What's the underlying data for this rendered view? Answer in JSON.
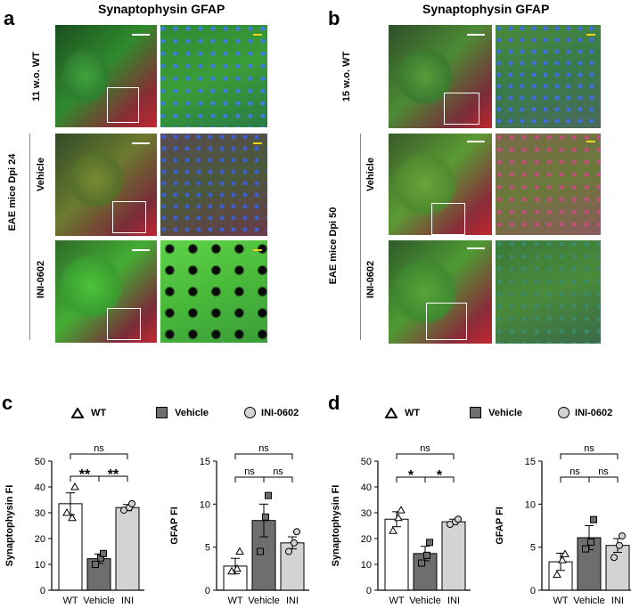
{
  "panel_a": {
    "letter": "a",
    "title": "Synaptophysin GFAP",
    "rows": [
      "11 w.o. WT",
      "Vehicle",
      "INI-0602"
    ],
    "group_label": "EAE mice Dpi 24"
  },
  "panel_b": {
    "letter": "b",
    "title": "Synaptophysin GFAP",
    "rows": [
      "15 w.o. WT",
      "Vehicle",
      "INI-0602"
    ],
    "group_label": "EAE mice Dpi 50"
  },
  "colors": {
    "wt": "#ffffff",
    "vehicle": "#6e6e6e",
    "ini": "#d3d3d3",
    "scale_white": "#ffffff",
    "scale_yellow": "#f2d21b"
  },
  "legend": {
    "wt": "WT",
    "vehicle": "Vehicle",
    "ini": "INI-0602"
  },
  "panel_c": {
    "letter": "c"
  },
  "panel_d": {
    "letter": "d"
  },
  "chart_data": [
    {
      "id": "c-synaptophysin",
      "type": "bar",
      "categories": [
        "WT",
        "Vehicle",
        "INI"
      ],
      "values": [
        33.5,
        12.2,
        32.0
      ],
      "errors": [
        4.2,
        1.8,
        1.2
      ],
      "points": [
        [
          30,
          28,
          40
        ],
        [
          10,
          12.5,
          14.2
        ],
        [
          31,
          32,
          33.5
        ]
      ],
      "ylabel": "Synaptophysin FI",
      "ylim": [
        0,
        50
      ],
      "yticks": [
        0,
        10,
        20,
        30,
        40,
        50
      ],
      "annotations": [
        {
          "from": 0,
          "to": 1,
          "label": "**"
        },
        {
          "from": 1,
          "to": 2,
          "label": "**"
        },
        {
          "from": 0,
          "to": 2,
          "label": "ns"
        }
      ]
    },
    {
      "id": "c-gfap",
      "type": "bar",
      "categories": [
        "WT",
        "Vehicle",
        "INI"
      ],
      "values": [
        2.8,
        8.1,
        5.5
      ],
      "errors": [
        0.9,
        1.9,
        0.7
      ],
      "points": [
        [
          2.2,
          2.5,
          4.5
        ],
        [
          4.5,
          8.5,
          11.0
        ],
        [
          4.5,
          5.5,
          6.8
        ]
      ],
      "ylabel": "GFAP FI",
      "ylim": [
        0,
        15
      ],
      "yticks": [
        0,
        5,
        10,
        15
      ],
      "annotations": [
        {
          "from": 0,
          "to": 1,
          "label": "ns"
        },
        {
          "from": 1,
          "to": 2,
          "label": "ns"
        },
        {
          "from": 0,
          "to": 2,
          "label": "ns"
        }
      ]
    },
    {
      "id": "d-synaptophysin",
      "type": "bar",
      "categories": [
        "WT",
        "Vehicle",
        "INI"
      ],
      "values": [
        27.5,
        14.2,
        26.5
      ],
      "errors": [
        2.9,
        2.8,
        1.0
      ],
      "points": [
        [
          23,
          28,
          31
        ],
        [
          10.5,
          13.5,
          18.5
        ],
        [
          25.5,
          26.5,
          27.5
        ]
      ],
      "ylabel": "Synaptophysin FI",
      "ylim": [
        0,
        50
      ],
      "yticks": [
        0,
        10,
        20,
        30,
        40,
        50
      ],
      "annotations": [
        {
          "from": 0,
          "to": 1,
          "label": "*"
        },
        {
          "from": 1,
          "to": 2,
          "label": "*"
        },
        {
          "from": 0,
          "to": 2,
          "label": "ns"
        }
      ]
    },
    {
      "id": "d-gfap",
      "type": "bar",
      "categories": [
        "WT",
        "Vehicle",
        "INI"
      ],
      "values": [
        3.3,
        6.1,
        5.2
      ],
      "errors": [
        1.0,
        1.4,
        0.8
      ],
      "points": [
        [
          1.8,
          3.5,
          4.2
        ],
        [
          4.8,
          5.6,
          8.2
        ],
        [
          3.8,
          5.2,
          6.3
        ]
      ],
      "ylabel": "GFAP FI",
      "ylim": [
        0,
        15
      ],
      "yticks": [
        0,
        5,
        10,
        15
      ],
      "annotations": [
        {
          "from": 0,
          "to": 1,
          "label": "ns"
        },
        {
          "from": 1,
          "to": 2,
          "label": "ns"
        },
        {
          "from": 0,
          "to": 2,
          "label": "ns"
        }
      ]
    }
  ]
}
